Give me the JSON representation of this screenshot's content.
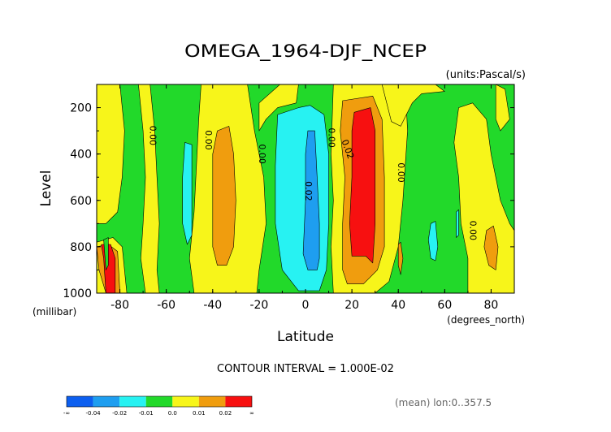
{
  "chart_data": {
    "type": "heatmap",
    "title": "OMEGA_1964-DJF_NCEP",
    "units_label": "(units:Pascal/s)",
    "xlabel": "Latitude",
    "x_units_label": "(degrees_north)",
    "ylabel": "Level",
    "y_units_label": "(millibar)",
    "xlim": [
      -90,
      90
    ],
    "ylim": [
      1000,
      100
    ],
    "y_axis_inverted": true,
    "x_ticks": [
      -80,
      -60,
      -40,
      -20,
      0,
      20,
      40,
      60,
      80
    ],
    "x_tick_labels": [
      "-80",
      "-60",
      "-40",
      "-20",
      "0",
      "20",
      "40",
      "60",
      "80"
    ],
    "y_ticks": [
      200,
      400,
      600,
      800,
      1000
    ],
    "y_tick_labels": [
      "200",
      "400",
      "600",
      "800",
      "1000"
    ],
    "contour_interval_label": "CONTOUR INTERVAL = 1.000E-02",
    "footnote": "(mean) lon:0..357.5",
    "contour_labels": [
      {
        "text": "0.00",
        "lat": -66,
        "level": 320,
        "rotate": 90
      },
      {
        "text": "0.00",
        "lat": -42,
        "level": 340,
        "rotate": 90
      },
      {
        "text": "0.00",
        "lat": -19,
        "level": 400,
        "rotate": 90
      },
      {
        "text": "0.00",
        "lat": 11,
        "level": 330,
        "rotate": 90
      },
      {
        "text": "0.02",
        "lat": 18,
        "level": 380,
        "rotate": 70
      },
      {
        "text": "0.02",
        "lat": 1,
        "level": 560,
        "rotate": 90
      },
      {
        "text": "0.00",
        "lat": 41,
        "level": 480,
        "rotate": 90
      },
      {
        "text": "0.00",
        "lat": 72,
        "level": 730,
        "rotate": 90
      }
    ],
    "legend": {
      "colors": [
        "#0c5ff0",
        "#1e9ef0",
        "#27f2f2",
        "#22d92a",
        "#f7f51a",
        "#f09d0e",
        "#f71010"
      ],
      "labels": [
        "-∞",
        "-0.04",
        "-0.02",
        "-0.01",
        "0.0",
        "0.01",
        "0.02",
        "∞"
      ]
    },
    "regions": [
      {
        "color": "#22d92a",
        "points": [
          [
            -90,
            100
          ],
          [
            90,
            100
          ],
          [
            90,
            1000
          ],
          [
            -90,
            1000
          ]
        ]
      },
      {
        "color": "#f7f51a",
        "points": [
          [
            -90,
            100
          ],
          [
            -80,
            100
          ],
          [
            -78,
            300
          ],
          [
            -79,
            500
          ],
          [
            -81,
            650
          ],
          [
            -86,
            700
          ],
          [
            -90,
            700
          ]
        ]
      },
      {
        "color": "#f7f51a",
        "points": [
          [
            -72,
            100
          ],
          [
            -67,
            100
          ],
          [
            -65,
            300
          ],
          [
            -64,
            500
          ],
          [
            -63,
            700
          ],
          [
            -64,
            900
          ],
          [
            -63,
            1000
          ],
          [
            -69,
            1000
          ],
          [
            -71,
            850
          ],
          [
            -70,
            700
          ],
          [
            -69,
            500
          ],
          [
            -70,
            300
          ]
        ]
      },
      {
        "color": "#f7f51a",
        "points": [
          [
            -90,
            780
          ],
          [
            -83,
            760
          ],
          [
            -79,
            800
          ],
          [
            -77,
            1000
          ],
          [
            -90,
            1000
          ]
        ]
      },
      {
        "color": "#f09d0e",
        "points": [
          [
            -90,
            800
          ],
          [
            -85,
            790
          ],
          [
            -81,
            820
          ],
          [
            -80,
            1000
          ],
          [
            -86,
            1000
          ],
          [
            -89,
            900
          ]
        ]
      },
      {
        "color": "#f71010",
        "points": [
          [
            -88,
            790
          ],
          [
            -84,
            790
          ],
          [
            -82,
            850
          ],
          [
            -82,
            1000
          ],
          [
            -86,
            1000
          ],
          [
            -87,
            850
          ]
        ]
      },
      {
        "color": "#f7f51a",
        "points": [
          [
            -45,
            100
          ],
          [
            -25,
            100
          ],
          [
            -22,
            300
          ],
          [
            -18,
            500
          ],
          [
            -17,
            700
          ],
          [
            -20,
            900
          ],
          [
            -21,
            1000
          ],
          [
            -48,
            1000
          ],
          [
            -50,
            850
          ],
          [
            -48,
            650
          ],
          [
            -47,
            450
          ],
          [
            -46,
            250
          ]
        ]
      },
      {
        "color": "#f09d0e",
        "points": [
          [
            -38,
            300
          ],
          [
            -33,
            280
          ],
          [
            -31,
            400
          ],
          [
            -30,
            600
          ],
          [
            -31,
            800
          ],
          [
            -34,
            880
          ],
          [
            -38,
            880
          ],
          [
            -40,
            800
          ],
          [
            -40,
            600
          ],
          [
            -40,
            400
          ]
        ]
      },
      {
        "color": "#f7f51a",
        "points": [
          [
            -11,
            100
          ],
          [
            -3,
            100
          ],
          [
            -4,
            180
          ],
          [
            -12,
            200
          ],
          [
            -17,
            250
          ],
          [
            -20,
            300
          ],
          [
            -20,
            180
          ]
        ]
      },
      {
        "color": "#f7f51a",
        "points": [
          [
            12,
            100
          ],
          [
            43,
            100
          ],
          [
            44,
            300
          ],
          [
            42,
            600
          ],
          [
            40,
            800
          ],
          [
            36,
            950
          ],
          [
            30,
            1000
          ],
          [
            12,
            1000
          ],
          [
            11,
            800
          ],
          [
            12,
            600
          ],
          [
            11,
            400
          ]
        ]
      },
      {
        "color": "#f09d0e",
        "points": [
          [
            16,
            170
          ],
          [
            29,
            150
          ],
          [
            33,
            250
          ],
          [
            34,
            500
          ],
          [
            34,
            800
          ],
          [
            31,
            900
          ],
          [
            25,
            960
          ],
          [
            18,
            960
          ],
          [
            16,
            900
          ],
          [
            16,
            700
          ],
          [
            17,
            500
          ],
          [
            15,
            300
          ]
        ]
      },
      {
        "color": "#f71010",
        "points": [
          [
            21,
            220
          ],
          [
            28,
            200
          ],
          [
            30,
            300
          ],
          [
            30,
            500
          ],
          [
            30,
            700
          ],
          [
            29,
            870
          ],
          [
            26,
            840
          ],
          [
            20,
            840
          ],
          [
            19,
            700
          ],
          [
            20,
            500
          ],
          [
            20,
            300
          ]
        ]
      },
      {
        "color": "#f7f51a",
        "points": [
          [
            33,
            100
          ],
          [
            56,
            100
          ],
          [
            60,
            130
          ],
          [
            50,
            140
          ],
          [
            46,
            180
          ],
          [
            41,
            280
          ],
          [
            37,
            260
          ]
        ]
      },
      {
        "color": "#f7f51a",
        "points": [
          [
            66,
            200
          ],
          [
            72,
            180
          ],
          [
            78,
            250
          ],
          [
            80,
            400
          ],
          [
            84,
            600
          ],
          [
            88,
            700
          ],
          [
            90,
            730
          ],
          [
            90,
            1000
          ],
          [
            70,
            1000
          ],
          [
            70,
            850
          ],
          [
            67,
            700
          ],
          [
            66,
            500
          ],
          [
            64,
            350
          ]
        ]
      },
      {
        "color": "#f09d0e",
        "points": [
          [
            78,
            730
          ],
          [
            81,
            710
          ],
          [
            83,
            800
          ],
          [
            82,
            900
          ],
          [
            79,
            880
          ],
          [
            77,
            800
          ]
        ]
      },
      {
        "color": "#f09d0e",
        "points": [
          [
            40,
            790
          ],
          [
            41,
            780
          ],
          [
            42,
            850
          ],
          [
            41,
            920
          ],
          [
            40,
            880
          ]
        ]
      },
      {
        "color": "#f7f51a",
        "points": [
          [
            82,
            100
          ],
          [
            86,
            120
          ],
          [
            88,
            250
          ],
          [
            84,
            300
          ],
          [
            82,
            250
          ]
        ]
      },
      {
        "color": "#27f2f2",
        "points": [
          [
            -52,
            350
          ],
          [
            -49,
            360
          ],
          [
            -49,
            550
          ],
          [
            -49,
            750
          ],
          [
            -51,
            790
          ],
          [
            -53,
            700
          ],
          [
            -53,
            500
          ]
        ]
      },
      {
        "color": "#27f2f2",
        "points": [
          [
            -12,
            230
          ],
          [
            -3,
            200
          ],
          [
            2,
            190
          ],
          [
            8,
            230
          ],
          [
            10,
            400
          ],
          [
            10,
            700
          ],
          [
            9,
            900
          ],
          [
            6,
            990
          ],
          [
            -3,
            990
          ],
          [
            -10,
            900
          ],
          [
            -13,
            700
          ],
          [
            -13,
            450
          ]
        ]
      },
      {
        "color": "#1e9ef0",
        "points": [
          [
            1,
            300
          ],
          [
            4,
            300
          ],
          [
            5,
            500
          ],
          [
            6,
            700
          ],
          [
            6,
            850
          ],
          [
            5,
            900
          ],
          [
            1,
            900
          ],
          [
            -1,
            830
          ],
          [
            0,
            600
          ],
          [
            0,
            400
          ]
        ]
      },
      {
        "color": "#27f2f2",
        "points": [
          [
            54,
            700
          ],
          [
            56,
            690
          ],
          [
            57,
            800
          ],
          [
            56,
            860
          ],
          [
            54,
            850
          ],
          [
            53,
            770
          ]
        ]
      },
      {
        "color": "#27f2f2",
        "points": [
          [
            65,
            650
          ],
          [
            66,
            640
          ],
          [
            66,
            750
          ],
          [
            65,
            760
          ]
        ]
      },
      {
        "color": "#22d92a",
        "points": [
          [
            -87,
            770
          ],
          [
            -85,
            760
          ],
          [
            -85,
            880
          ],
          [
            -86,
            900
          ]
        ]
      }
    ]
  }
}
